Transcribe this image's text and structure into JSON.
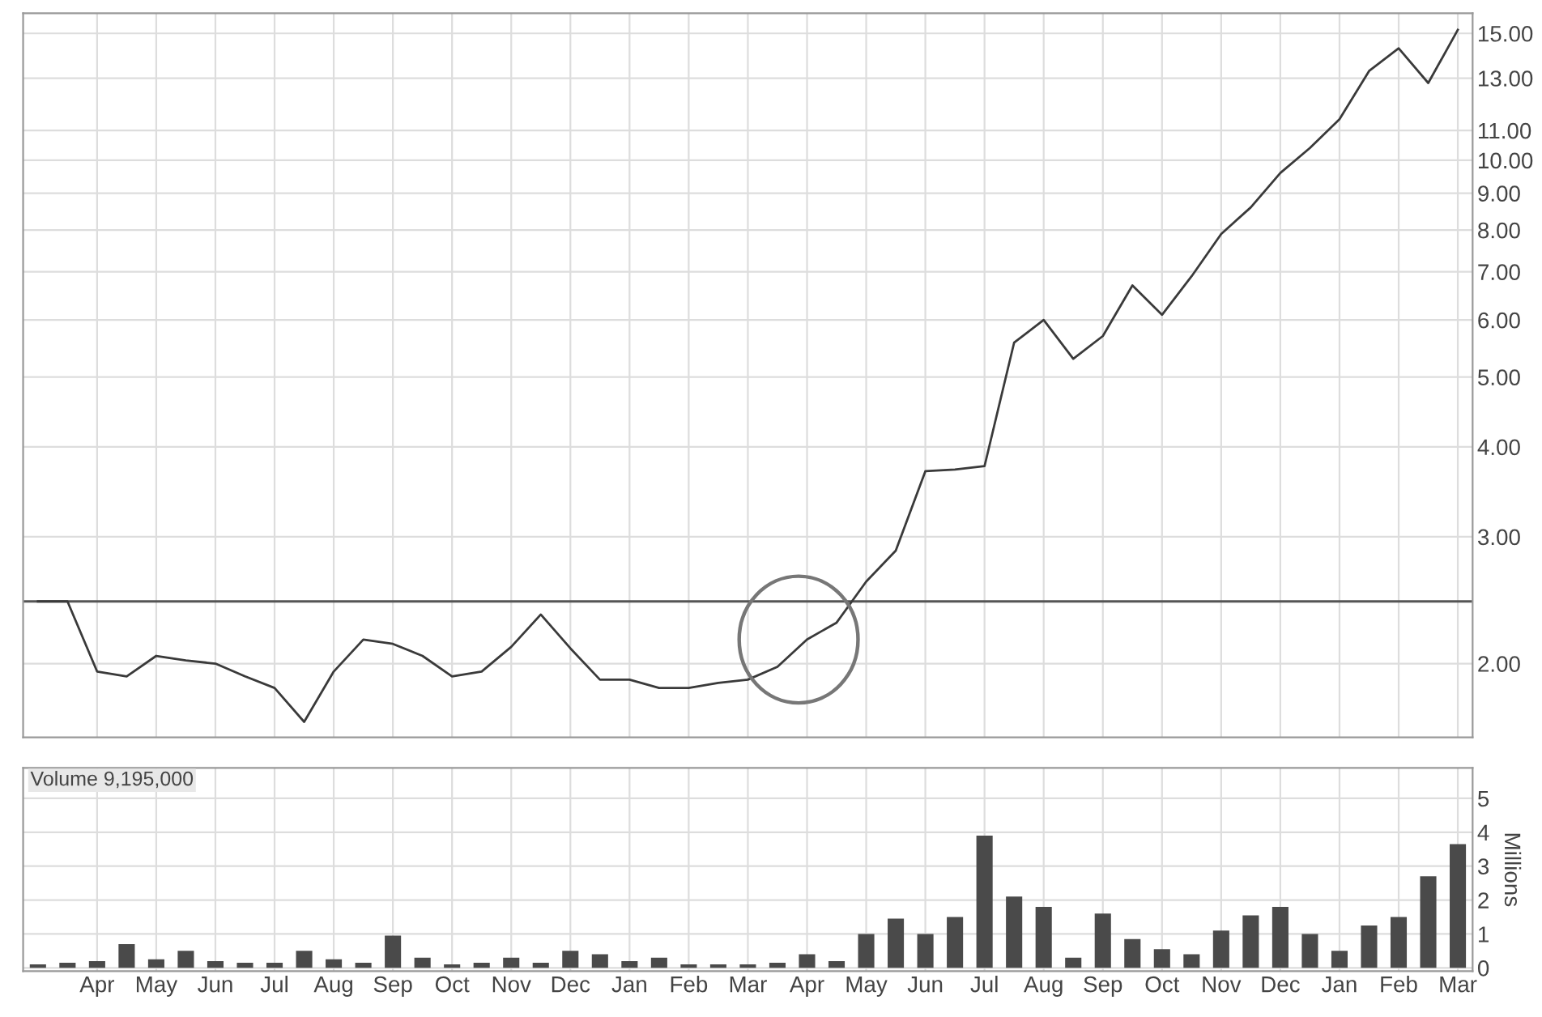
{
  "chart_data": [
    {
      "type": "line",
      "log": "y",
      "grid": true,
      "tick_labels": "y",
      "ylim": [
        1.58,
        16
      ],
      "categories": [
        null,
        null,
        null,
        null,
        null,
        null,
        null,
        null,
        null,
        null,
        null,
        null,
        null,
        null,
        null,
        null,
        null,
        null,
        null,
        null,
        null,
        null,
        null,
        null,
        null,
        null,
        null,
        null,
        null,
        null,
        null,
        null,
        null,
        null,
        null,
        null,
        null,
        null,
        null,
        null,
        null,
        null,
        null,
        null,
        null,
        null,
        null,
        null,
        null
      ],
      "yticks": [
        {
          "value": 2,
          "label": "2.00"
        },
        {
          "value": 3,
          "label": "3.00"
        },
        {
          "value": 4,
          "label": "4.00"
        },
        {
          "value": 5,
          "label": "5.00"
        },
        {
          "value": 6,
          "label": "6.00"
        },
        {
          "value": 7,
          "label": "7.00"
        },
        {
          "value": 8,
          "label": "8.00"
        },
        {
          "value": 9,
          "label": "9.00"
        },
        {
          "value": 10,
          "label": "10.00"
        },
        {
          "value": 11,
          "label": "11.00"
        },
        {
          "value": 13,
          "label": "13.00"
        },
        {
          "value": 15,
          "label": "15.00"
        }
      ],
      "ref_lines": [
        {
          "axis": "y",
          "value": 2.44,
          "label": null,
          "color": "#555555"
        }
      ],
      "series": [
        {
          "color": "#3a3a3a",
          "values": [
            2.44,
            2.44,
            1.95,
            1.92,
            2.05,
            2.02,
            2.0,
            1.92,
            1.85,
            1.66,
            1.95,
            2.16,
            2.13,
            2.05,
            1.92,
            1.95,
            2.11,
            2.34,
            2.1,
            1.9,
            1.9,
            1.85,
            1.85,
            1.88,
            1.9,
            1.98,
            2.16,
            2.28,
            2.6,
            2.87,
            3.7,
            3.72,
            3.76,
            5.58,
            6.0,
            5.3,
            5.7,
            6.7,
            6.1,
            6.9,
            7.9,
            8.6,
            9.6,
            10.4,
            11.4,
            13.3,
            14.3,
            12.8,
            15.17
          ]
        }
      ]
    },
    {
      "type": "bar",
      "grid": true,
      "ylim": [
        -0.1,
        5.9
      ],
      "ylabel": "Millions",
      "annotations": [
        "Volume 9,195,000"
      ],
      "categories": [
        null,
        null,
        "Apr",
        null,
        "May",
        null,
        "Jun",
        null,
        "Jul",
        null,
        "Aug",
        null,
        "Sep",
        null,
        "Oct",
        null,
        "Nov",
        null,
        "Dec",
        null,
        "Jan",
        null,
        "Feb",
        null,
        "Mar",
        null,
        "Apr",
        null,
        "May",
        null,
        "Jun",
        null,
        "Jul",
        null,
        "Aug",
        null,
        "Sep",
        null,
        "Oct",
        null,
        "Nov",
        null,
        "Dec",
        null,
        "Jan",
        null,
        "Feb",
        null,
        "Mar"
      ],
      "yticks": [
        0,
        1,
        2,
        3,
        4,
        5
      ],
      "series": [
        {
          "color": "#4a4a4a",
          "values": [
            0.1,
            0.15,
            0.2,
            0.7,
            0.25,
            0.5,
            0.2,
            0.15,
            0.15,
            0.5,
            0.25,
            0.15,
            0.95,
            0.3,
            0.1,
            0.15,
            0.3,
            0.15,
            0.5,
            0.4,
            0.2,
            0.3,
            0.1,
            0.1,
            0.1,
            0.15,
            0.4,
            0.2,
            1.0,
            1.45,
            1.0,
            1.5,
            3.9,
            2.1,
            1.8,
            0.3,
            1.6,
            0.85,
            0.55,
            0.4,
            1.1,
            1.55,
            1.8,
            1.0,
            0.5,
            1.25,
            1.5,
            2.7,
            3.65
          ]
        }
      ]
    }
  ]
}
